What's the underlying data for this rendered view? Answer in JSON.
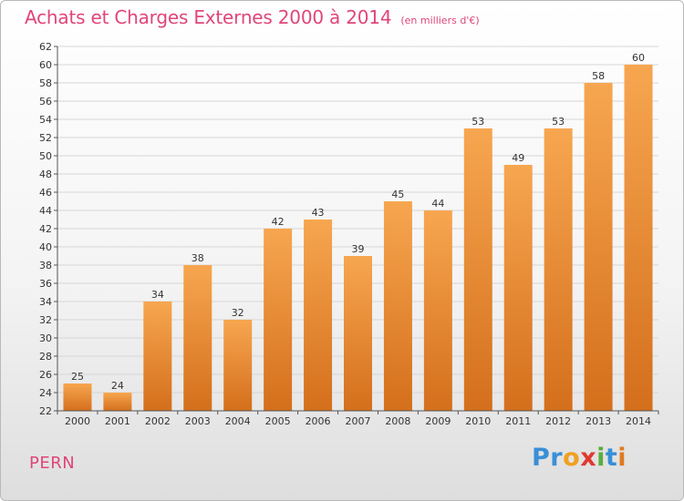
{
  "title": "Achats et Charges Externes 2000 à 2014",
  "subtitle": "(en milliers d'€)",
  "commune": "PERN",
  "logo": {
    "text": "Proxiti",
    "letters": [
      "P",
      "r",
      "o",
      "x",
      "i",
      "t",
      "i"
    ],
    "colors": [
      "#3a8fd6",
      "#3a8fd6",
      "#f0a020",
      "#e03a30",
      "#5aae3c",
      "#3a8fd6",
      "#e07a20"
    ]
  },
  "colors": {
    "title": "#e0457b",
    "bar_light": "#f7a24c",
    "bar_dark": "#d9731e",
    "grid": "#d6d6d6"
  },
  "chart_data": {
    "type": "bar",
    "title": "Achats et Charges Externes 2000 à 2014",
    "xlabel": "",
    "ylabel": "",
    "categories": [
      "2000",
      "2001",
      "2002",
      "2003",
      "2004",
      "2005",
      "2006",
      "2007",
      "2008",
      "2009",
      "2010",
      "2011",
      "2012",
      "2013",
      "2014"
    ],
    "values": [
      25,
      24,
      34,
      38,
      32,
      42,
      43,
      39,
      45,
      44,
      53,
      49,
      53,
      58,
      60
    ],
    "ylim": [
      22,
      62
    ],
    "yticks": [
      22,
      24,
      26,
      28,
      30,
      32,
      34,
      36,
      38,
      40,
      42,
      44,
      46,
      48,
      50,
      52,
      54,
      56,
      58,
      60,
      62
    ],
    "grid": true,
    "data_labels": true
  }
}
